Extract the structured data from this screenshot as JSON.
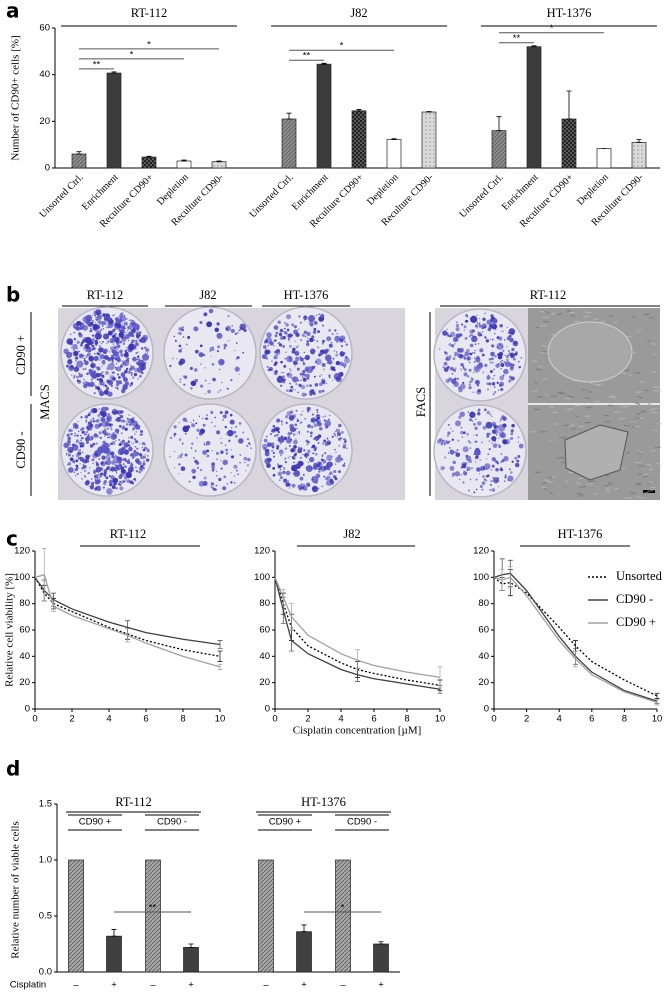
{
  "panel_labels": [
    "a",
    "b",
    "c",
    "d"
  ],
  "chart_data": [
    {
      "type": "bar",
      "ylabel": "Number of CD90+ cells [%]",
      "ylim": [
        0,
        60
      ],
      "yticks": [
        0,
        20,
        40,
        60
      ],
      "colors": [
        "#8c8c8c",
        "#3c3c3c",
        "#5a5a5a",
        "#ffffff",
        "#d9d9d9"
      ],
      "groups": [
        {
          "name": "RT-112",
          "categories": [
            "Unsorted Ctrl.",
            "Enrichment",
            "Reculture CD90+",
            "Depletion",
            "Reculture CD90-"
          ],
          "values": [
            6,
            40.7,
            4.7,
            3,
            2.7
          ],
          "errors": [
            1,
            0.5,
            0.3,
            0.4,
            0.3
          ],
          "significance": [
            {
              "label": "**",
              "pair": [
                0,
                1
              ]
            },
            {
              "label": "*",
              "pair": [
                0,
                3
              ]
            },
            {
              "label": "*",
              "pair": [
                0,
                4
              ]
            }
          ]
        },
        {
          "name": "J82",
          "categories": [
            "Unsorted Ctrl.",
            "Enrichment",
            "Reculture CD90+",
            "Depletion",
            "Reculture CD90-"
          ],
          "values": [
            21,
            44.5,
            24.5,
            12.2,
            24
          ],
          "errors": [
            2.5,
            0.4,
            0.6,
            0.3,
            0.2
          ],
          "significance": [
            {
              "label": "**",
              "pair": [
                0,
                1
              ]
            },
            {
              "label": "*",
              "pair": [
                0,
                3
              ]
            }
          ]
        },
        {
          "name": "HT-1376",
          "categories": [
            "Unsorted Ctrl.",
            "Enrichment",
            "Reculture CD90+",
            "Depletion",
            "Reculture CD90-"
          ],
          "values": [
            16,
            52,
            21,
            8.3,
            11
          ],
          "errors": [
            6,
            0.4,
            12,
            0,
            1.2
          ],
          "significance": [
            {
              "label": "**",
              "pair": [
                0,
                1
              ]
            },
            {
              "label": "*",
              "pair": [
                0,
                3
              ]
            }
          ]
        }
      ]
    },
    {
      "type": "line",
      "title": "RT-112",
      "ylabel": "Relative cell viability [%]",
      "xlim": [
        0,
        10
      ],
      "ylim": [
        0,
        120
      ],
      "xticks": [
        0,
        2,
        4,
        6,
        8,
        10
      ],
      "yticks": [
        0,
        20,
        40,
        60,
        80,
        100,
        120
      ],
      "x": [
        0,
        0.5,
        1,
        2,
        4,
        5,
        6,
        8,
        10
      ],
      "series": [
        {
          "color": "#000000",
          "linestyle": "dotted",
          "values": [
            100,
            88,
            80,
            74,
            62,
            57,
            52,
            45,
            40
          ],
          "errors": [
            null,
            6,
            4,
            null,
            null,
            4,
            null,
            null,
            4
          ]
        },
        {
          "color": "#404040",
          "linestyle": "solid",
          "values": [
            100,
            90,
            83,
            76,
            66,
            62,
            58,
            53,
            49
          ],
          "errors": [
            null,
            8,
            5,
            null,
            null,
            5,
            null,
            null,
            3
          ]
        },
        {
          "color": "#a0a0a0",
          "linestyle": "solid",
          "values": [
            100,
            102,
            78,
            71,
            61,
            56,
            50,
            40,
            32
          ],
          "errors": [
            null,
            20,
            4,
            null,
            null,
            5,
            null,
            null,
            2
          ]
        }
      ]
    },
    {
      "type": "line",
      "title": "J82",
      "xlabel": "Cisplatin concentration [µM]",
      "xlim": [
        0,
        10
      ],
      "ylim": [
        0,
        120
      ],
      "xticks": [
        0,
        2,
        4,
        6,
        8,
        10
      ],
      "yticks": [
        0,
        20,
        40,
        60,
        80,
        100,
        120
      ],
      "x": [
        0,
        0.5,
        1,
        2,
        4,
        5,
        6,
        8,
        10
      ],
      "series": [
        {
          "color": "#000000",
          "linestyle": "dotted",
          "values": [
            100,
            80,
            62,
            48,
            35,
            30,
            27,
            22,
            18
          ],
          "errors": [
            null,
            8,
            10,
            null,
            null,
            6,
            null,
            null,
            4
          ]
        },
        {
          "color": "#404040",
          "linestyle": "solid",
          "values": [
            100,
            75,
            52,
            42,
            30,
            26,
            23,
            19,
            15
          ],
          "errors": [
            null,
            10,
            8,
            null,
            null,
            5,
            null,
            null,
            3
          ]
        },
        {
          "color": "#a0a0a0",
          "linestyle": "solid",
          "values": [
            100,
            85,
            70,
            56,
            42,
            37,
            33,
            28,
            24
          ],
          "errors": [
            null,
            6,
            10,
            null,
            null,
            8,
            null,
            null,
            8
          ]
        }
      ]
    },
    {
      "type": "line",
      "title": "HT-1376",
      "xlim": [
        0,
        10
      ],
      "ylim": [
        0,
        120
      ],
      "legend": "upper right",
      "xticks": [
        0,
        2,
        4,
        6,
        8,
        10
      ],
      "yticks": [
        0,
        20,
        40,
        60,
        80,
        100,
        120
      ],
      "x": [
        0,
        0.5,
        1,
        2,
        4,
        5,
        6,
        8,
        10
      ],
      "series": [
        {
          "name": "Unsorted",
          "color": "#000000",
          "linestyle": "dotted",
          "values": [
            100,
            95,
            96,
            88,
            62,
            48,
            36,
            22,
            10
          ],
          "errors": [
            null,
            5,
            10,
            null,
            null,
            4,
            null,
            null,
            2
          ]
        },
        {
          "name": "CD90 -",
          "color": "#404040",
          "linestyle": "solid",
          "values": [
            100,
            102,
            103,
            90,
            55,
            40,
            28,
            14,
            6
          ],
          "errors": [
            null,
            12,
            10,
            null,
            null,
            6,
            null,
            null,
            2
          ]
        },
        {
          "name": "CD90 +",
          "color": "#a0a0a0",
          "linestyle": "solid",
          "values": [
            100,
            98,
            100,
            86,
            52,
            38,
            26,
            13,
            5
          ],
          "errors": [
            null,
            8,
            8,
            null,
            null,
            6,
            null,
            null,
            2
          ]
        }
      ]
    },
    {
      "type": "bar",
      "ylabel": "Relative number of viable cells",
      "ylim": [
        0,
        1.5
      ],
      "yticks": [
        {
          "value": 0,
          "label": "0.0"
        },
        0.5,
        {
          "value": 1,
          "label": "1.0"
        },
        1.5
      ],
      "colors": [
        "#a6a6a6",
        "#404040"
      ],
      "row_label": "Cisplatin",
      "groups": [
        {
          "name": "RT-112",
          "subgroups": [
            {
              "name": "CD90 +",
              "categories": [
                "–",
                "+"
              ],
              "values": [
                1,
                0.32
              ],
              "errors": [
                null,
                0.06
              ]
            },
            {
              "name": "CD90 -",
              "categories": [
                "–",
                "+"
              ],
              "values": [
                1,
                0.22
              ],
              "errors": [
                null,
                0.03
              ]
            }
          ],
          "significance": [
            {
              "label": "**",
              "pair": [
                1,
                3
              ]
            }
          ]
        },
        {
          "name": "HT-1376",
          "subgroups": [
            {
              "name": "CD90 +",
              "categories": [
                "–",
                "+"
              ],
              "values": [
                1,
                0.36
              ],
              "errors": [
                null,
                0.06
              ]
            },
            {
              "name": "CD90 -",
              "categories": [
                "–",
                "+"
              ],
              "values": [
                1,
                0.25
              ],
              "errors": [
                null,
                0.02
              ]
            }
          ],
          "significance": [
            {
              "label": "*",
              "pair": [
                1,
                3
              ]
            }
          ]
        }
      ]
    }
  ],
  "panel_b": {
    "macs": {
      "label": "MACS",
      "columns": [
        "RT-112",
        "J82",
        "HT-1376"
      ],
      "rows": [
        "CD90 +",
        "CD90 -"
      ]
    },
    "facs": {
      "label": "FACS",
      "header": "RT-112"
    }
  }
}
